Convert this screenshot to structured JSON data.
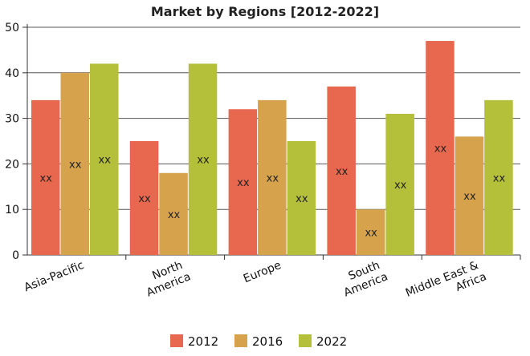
{
  "chart_data": {
    "type": "bar",
    "title": "Market by Regions [2012-2022]",
    "categories": [
      "Asia-Pacific",
      "North America",
      "Europe",
      "South America",
      "Middle East & Africa"
    ],
    "series": [
      {
        "name": "2012",
        "color": "#e8684f",
        "values": [
          34,
          25,
          32,
          37,
          47
        ]
      },
      {
        "name": "2016",
        "color": "#d6a24c",
        "values": [
          40,
          18,
          34,
          10,
          26
        ]
      },
      {
        "name": "2022",
        "color": "#b4bf3a",
        "values": [
          42,
          42,
          25,
          31,
          34
        ]
      }
    ],
    "data_label": "xx",
    "ylim": [
      0,
      50
    ],
    "yticks": [
      0,
      10,
      20,
      30,
      40,
      50
    ],
    "grid": true,
    "legend_position": "bottom-center"
  }
}
